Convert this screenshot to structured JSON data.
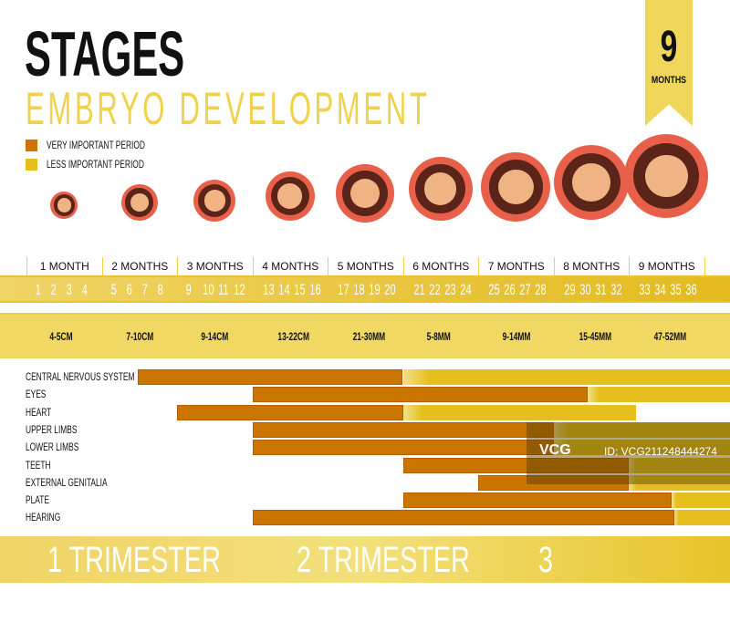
{
  "header": {
    "title": "STAGES",
    "subtitle": "EMBRYO DEVELOPMENT"
  },
  "legend": [
    {
      "label": "VERY IMPORTANT PERIOD",
      "color": "#c97500"
    },
    {
      "label": "LESS IMPORTANT PERIOD",
      "color": "#e6bf1e"
    }
  ],
  "ribbon": {
    "number": "9",
    "label": "MONTHS"
  },
  "months": [
    "1 MONTH",
    "2 MONTHS",
    "3 MONTHS",
    "4 MONTHS",
    "5 MONTHS",
    "6 MONTHS",
    "7 MONTHS",
    "8 MONTHS",
    "9 MONTHS"
  ],
  "weeks": [
    "1",
    "2",
    "3",
    "4",
    "5",
    "6",
    "7",
    "8",
    "9",
    "10",
    "11",
    "12",
    "13",
    "14",
    "15",
    "16",
    "17",
    "18",
    "19",
    "20",
    "21",
    "22",
    "23",
    "24",
    "25",
    "26",
    "27",
    "28",
    "29",
    "30",
    "31",
    "32",
    "33",
    "34",
    "35",
    "36"
  ],
  "sizes": [
    "4-5CM",
    "7-10CM",
    "9-14CM",
    "13-22CM",
    "21-30MM",
    "5-8MM",
    "9-14MM",
    "15-45MM",
    "47-52MM"
  ],
  "organs": [
    {
      "label": "CENTRAL  NERVOUS SYSTEM",
      "start_month": 1.48,
      "important_until": 5.0,
      "end_month": 9.35
    },
    {
      "label": "EYES",
      "start_month": 3.0,
      "important_until": 7.45,
      "end_month": 9.35
    },
    {
      "label": "HEART",
      "start_month": 2.0,
      "important_until": 5.0,
      "end_month": 8.1
    },
    {
      "label": "UPPER LIMBS",
      "start_month": 3.0,
      "important_until": 7.0,
      "end_month": 9.35
    },
    {
      "label": "LOWER LIMBS",
      "start_month": 3.0,
      "important_until": 7.0,
      "end_month": 9.35
    },
    {
      "label": "TEETH",
      "start_month": 5.0,
      "important_until": 8.0,
      "end_month": 9.35
    },
    {
      "label": "EXTERNAL GENITALIA",
      "start_month": 6.0,
      "important_until": 8.0,
      "end_month": 9.35
    },
    {
      "label": "PLATE",
      "start_month": 5.0,
      "important_until": 8.57,
      "end_month": 9.35
    },
    {
      "label": "HEARING",
      "start_month": 3.0,
      "important_until": 8.6,
      "end_month": 9.35
    }
  ],
  "watermark": {
    "brand": "VCG",
    "id": "ID: VCG211248444274"
  },
  "trimesters": [
    "1 TRIMESTER",
    "2 TRIMESTER",
    "3 TRIMESTER"
  ]
}
